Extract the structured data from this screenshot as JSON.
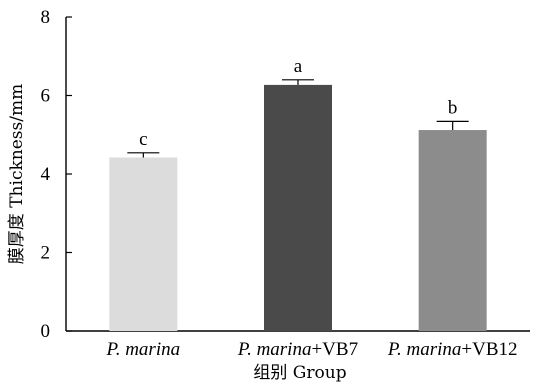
{
  "chart_data": {
    "type": "bar",
    "categories": [
      {
        "name": "P. marina",
        "suffix": ""
      },
      {
        "name": "P. marina",
        "suffix": "+VB7"
      },
      {
        "name": "P. marina",
        "suffix": "+VB12"
      }
    ],
    "values": [
      4.42,
      6.27,
      5.12
    ],
    "errors": [
      0.12,
      0.13,
      0.22
    ],
    "significance": [
      "c",
      "a",
      "b"
    ],
    "colors": [
      "#dcdcdc",
      "#4a4a4a",
      "#8c8c8c"
    ],
    "xlabel": "组别 Group",
    "ylabel": "膜厚度 Thickness/mm",
    "ylim": [
      0,
      8
    ],
    "yticks": [
      0,
      2,
      4,
      6,
      8
    ],
    "grid": false
  }
}
